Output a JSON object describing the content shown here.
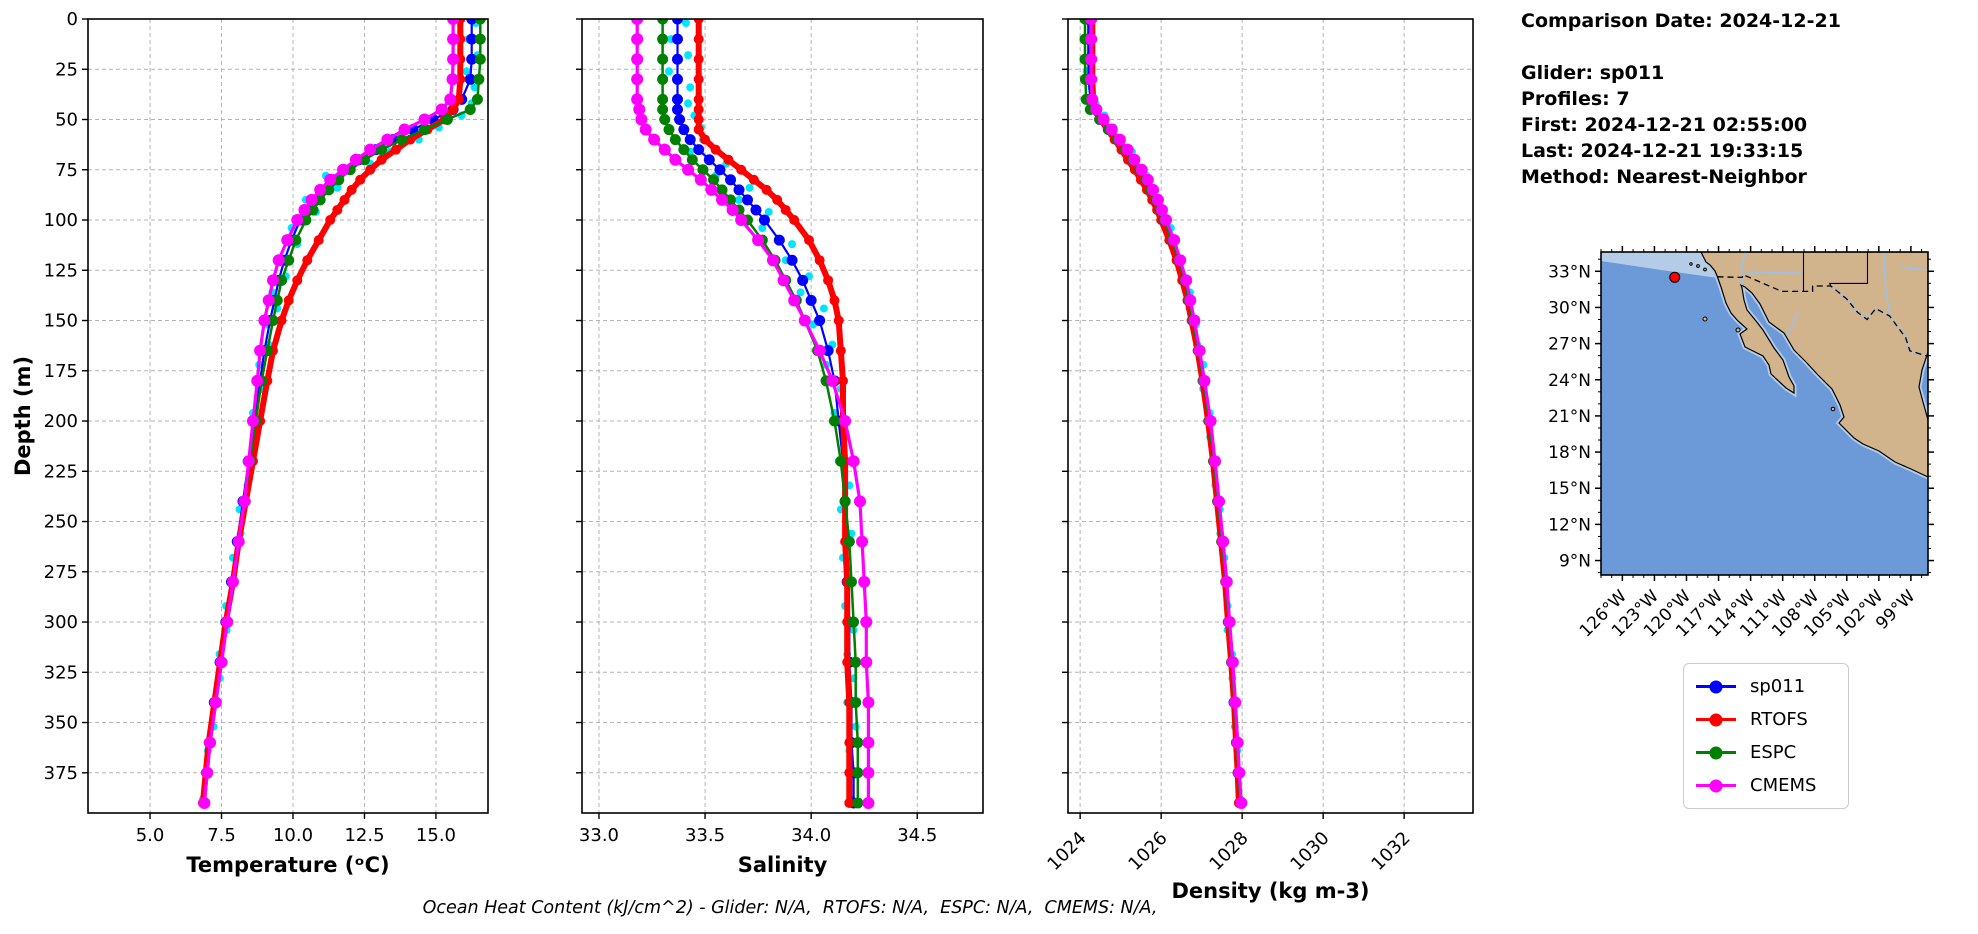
{
  "info_panel": {
    "comparison_date": "Comparison Date: 2024-12-21",
    "glider": "Glider: sp011",
    "profiles": "Profiles: 7",
    "first": "First: 2024-12-21 02:55:00",
    "last": "Last: 2024-12-21 19:33:15",
    "method": "Method: Nearest-Neighbor"
  },
  "caption": "Ocean Heat Content (kJ/cm^2) - Glider: N/A,  RTOFS: N/A,  ESPC: N/A,  CMEMS: N/A,",
  "legend": {
    "items": [
      {
        "label": "sp011",
        "color": "#0000ff"
      },
      {
        "label": "RTOFS",
        "color": "#ff0000"
      },
      {
        "label": "ESPC",
        "color": "#008000"
      },
      {
        "label": "CMEMS",
        "color": "#ff00ff"
      }
    ]
  },
  "chart_data": {
    "type": "line",
    "description": "Vertical ocean profiles from glider sp011 compared with RTOFS, ESPC and CMEMS models",
    "grid": true,
    "y_axis": {
      "label": "Depth (m)",
      "ticks": [
        0,
        25,
        50,
        75,
        100,
        125,
        150,
        175,
        200,
        225,
        250,
        275,
        300,
        325,
        350,
        375
      ],
      "range": [
        0,
        395
      ],
      "inverted": true
    },
    "panels": [
      {
        "id": "temperature",
        "xlabel": "Temperature (ᵒC)",
        "xlim": [
          2.83,
          16.82
        ],
        "xticks": [
          5.0,
          7.5,
          10.0,
          12.5,
          15.0
        ],
        "xtick_labels": [
          "5.0",
          "7.5",
          "10.0",
          "12.5",
          "15.0"
        ],
        "field": "temp",
        "rotate_xticklabels": false
      },
      {
        "id": "salinity",
        "xlabel": "Salinity",
        "xlim": [
          32.92,
          34.81
        ],
        "xticks": [
          33.0,
          33.5,
          34.0,
          34.5
        ],
        "xtick_labels": [
          "33.0",
          "33.5",
          "34.0",
          "34.5"
        ],
        "field": "sal",
        "rotate_xticklabels": false
      },
      {
        "id": "density",
        "xlabel": "Density (kg m-3)",
        "xlim": [
          1023.7,
          1033.7
        ],
        "xticks": [
          1024,
          1026,
          1028,
          1030,
          1032
        ],
        "xtick_labels": [
          "1024",
          "1026",
          "1028",
          "1030",
          "1032"
        ],
        "field": "dens",
        "rotate_xticklabels": true
      }
    ],
    "depths": [
      0,
      10,
      20,
      30,
      40,
      45,
      50,
      55,
      60,
      65,
      70,
      75,
      80,
      85,
      90,
      95,
      100,
      110,
      120,
      130,
      140,
      150,
      165,
      180,
      200,
      220,
      240,
      260,
      280,
      300,
      320,
      340,
      360,
      375,
      390
    ],
    "series": [
      {
        "name": "sp011",
        "color": "#0000ff",
        "line_width": 2.2,
        "marker_radius": 5.5,
        "temp": [
          16.25,
          16.25,
          16.25,
          16.2,
          15.9,
          15.6,
          14.9,
          14.2,
          13.5,
          12.9,
          12.3,
          11.8,
          11.4,
          11.05,
          10.75,
          10.5,
          10.25,
          9.95,
          9.7,
          9.5,
          9.35,
          9.2,
          9.0,
          8.85,
          8.65,
          8.45,
          8.25,
          8.05,
          7.85,
          7.65,
          7.45,
          7.25,
          7.1,
          7.0,
          6.9
        ],
        "sal": [
          33.37,
          33.37,
          33.37,
          33.37,
          33.37,
          33.37,
          33.38,
          33.4,
          33.43,
          33.47,
          33.52,
          33.57,
          33.62,
          33.66,
          33.7,
          33.74,
          33.78,
          33.85,
          33.91,
          33.96,
          34.0,
          34.04,
          34.08,
          34.11,
          34.13,
          34.15,
          34.16,
          34.17,
          34.17,
          34.18,
          34.18,
          34.19,
          34.19,
          34.2,
          34.2
        ],
        "dens": [
          1024.2,
          1024.2,
          1024.2,
          1024.21,
          1024.25,
          1024.38,
          1024.55,
          1024.75,
          1024.95,
          1025.15,
          1025.32,
          1025.5,
          1025.65,
          1025.78,
          1025.9,
          1026.0,
          1026.1,
          1026.3,
          1026.45,
          1026.6,
          1026.7,
          1026.8,
          1026.93,
          1027.05,
          1027.2,
          1027.3,
          1027.4,
          1027.5,
          1027.6,
          1027.66,
          1027.74,
          1027.8,
          1027.86,
          1027.9,
          1027.95
        ]
      },
      {
        "name": "RTOFS",
        "color": "#ff0000",
        "line_width": 6,
        "marker_radius": 5,
        "temp": [
          15.85,
          15.85,
          15.85,
          15.85,
          15.8,
          15.6,
          15.3,
          14.7,
          14.1,
          13.6,
          13.1,
          12.7,
          12.35,
          12.05,
          11.8,
          11.55,
          11.3,
          10.9,
          10.5,
          10.15,
          9.85,
          9.6,
          9.3,
          9.1,
          8.85,
          8.6,
          8.35,
          8.1,
          7.9,
          7.65,
          7.45,
          7.25,
          7.05,
          6.95,
          6.85
        ],
        "sal": [
          33.47,
          33.47,
          33.47,
          33.47,
          33.47,
          33.47,
          33.47,
          33.47,
          33.5,
          33.55,
          33.61,
          33.67,
          33.73,
          33.79,
          33.84,
          33.88,
          33.92,
          33.99,
          34.04,
          34.08,
          34.11,
          34.13,
          34.14,
          34.15,
          34.15,
          34.16,
          34.16,
          34.16,
          34.17,
          34.17,
          34.17,
          34.18,
          34.18,
          34.18,
          34.18
        ],
        "dens": [
          1024.3,
          1024.3,
          1024.3,
          1024.3,
          1024.32,
          1024.38,
          1024.5,
          1024.68,
          1024.85,
          1025.02,
          1025.18,
          1025.35,
          1025.5,
          1025.65,
          1025.78,
          1025.9,
          1026.0,
          1026.2,
          1026.38,
          1026.52,
          1026.65,
          1026.75,
          1026.9,
          1027.02,
          1027.16,
          1027.28,
          1027.38,
          1027.48,
          1027.58,
          1027.65,
          1027.73,
          1027.8,
          1027.85,
          1027.89,
          1027.92
        ]
      },
      {
        "name": "ESPC",
        "color": "#008000",
        "line_width": 2.5,
        "marker_radius": 5.5,
        "temp": [
          16.55,
          16.55,
          16.55,
          16.5,
          16.45,
          16.2,
          15.4,
          14.6,
          13.8,
          13.1,
          12.5,
          12.0,
          11.6,
          11.25,
          10.95,
          10.7,
          10.45,
          10.1,
          9.85,
          9.6,
          9.45,
          9.3,
          9.1,
          8.9,
          8.7,
          8.5,
          8.3,
          8.1,
          7.9,
          7.7,
          7.5,
          7.3,
          7.1,
          7.0,
          6.9
        ],
        "sal": [
          33.3,
          33.3,
          33.3,
          33.3,
          33.3,
          33.3,
          33.31,
          33.33,
          33.36,
          33.4,
          33.44,
          33.49,
          33.54,
          33.58,
          33.62,
          33.66,
          33.7,
          33.77,
          33.83,
          33.88,
          33.93,
          33.97,
          34.03,
          34.07,
          34.11,
          34.14,
          34.16,
          34.18,
          34.19,
          34.2,
          34.21,
          34.21,
          34.22,
          34.22,
          34.22
        ],
        "dens": [
          1024.12,
          1024.12,
          1024.12,
          1024.13,
          1024.15,
          1024.25,
          1024.48,
          1024.7,
          1024.92,
          1025.12,
          1025.3,
          1025.47,
          1025.62,
          1025.75,
          1025.87,
          1025.97,
          1026.07,
          1026.27,
          1026.43,
          1026.58,
          1026.68,
          1026.78,
          1026.92,
          1027.04,
          1027.19,
          1027.3,
          1027.4,
          1027.5,
          1027.6,
          1027.67,
          1027.75,
          1027.81,
          1027.87,
          1027.91,
          1027.96
        ]
      },
      {
        "name": "CMEMS",
        "color": "#ff00ff",
        "line_width": 3.2,
        "marker_radius": 6,
        "temp": [
          15.6,
          15.6,
          15.6,
          15.58,
          15.5,
          15.2,
          14.6,
          13.9,
          13.3,
          12.7,
          12.2,
          11.75,
          11.3,
          10.95,
          10.65,
          10.4,
          10.15,
          9.8,
          9.5,
          9.3,
          9.15,
          9.0,
          8.85,
          8.75,
          8.6,
          8.45,
          8.3,
          8.1,
          7.9,
          7.7,
          7.5,
          7.3,
          7.1,
          7.0,
          6.9
        ],
        "sal": [
          33.18,
          33.18,
          33.18,
          33.18,
          33.18,
          33.19,
          33.2,
          33.22,
          33.26,
          33.31,
          33.36,
          33.42,
          33.48,
          33.53,
          33.58,
          33.63,
          33.67,
          33.75,
          33.82,
          33.87,
          33.92,
          33.97,
          34.04,
          34.1,
          34.16,
          34.2,
          34.23,
          34.24,
          34.25,
          34.26,
          34.26,
          34.27,
          34.27,
          34.27,
          34.27
        ],
        "dens": [
          1024.27,
          1024.27,
          1024.27,
          1024.27,
          1024.3,
          1024.4,
          1024.58,
          1024.78,
          1024.98,
          1025.17,
          1025.34,
          1025.52,
          1025.67,
          1025.8,
          1025.92,
          1026.02,
          1026.12,
          1026.32,
          1026.47,
          1026.62,
          1026.72,
          1026.82,
          1026.95,
          1027.07,
          1027.22,
          1027.33,
          1027.43,
          1027.53,
          1027.62,
          1027.69,
          1027.77,
          1027.83,
          1027.89,
          1027.93,
          1027.98
        ]
      }
    ],
    "raw_scatter": {
      "name": "sp011 raw observations",
      "color": "#00e5ff",
      "marker_radius": 4,
      "depths": [
        2,
        10,
        18,
        26,
        34,
        42,
        48,
        54,
        60,
        66,
        72,
        78,
        84,
        90,
        96,
        104,
        112,
        120,
        128,
        136,
        144,
        152,
        162,
        172,
        184,
        196,
        208,
        220,
        232,
        244,
        256,
        268,
        280,
        292,
        304,
        316,
        328,
        340,
        352,
        364,
        376,
        388
      ],
      "temp": [
        16.4,
        16.13,
        16.45,
        16.07,
        16.35,
        16.25,
        15.9,
        15.1,
        14.4,
        13.4,
        12.7,
        11.15,
        11.55,
        10.45,
        10.8,
        9.95,
        10.15,
        9.55,
        9.75,
        9.28,
        9.45,
        9.08,
        9.15,
        8.82,
        8.9,
        8.6,
        8.67,
        8.37,
        8.41,
        8.13,
        8.17,
        7.9,
        7.93,
        7.66,
        7.68,
        7.43,
        7.44,
        7.19,
        7.22,
        7.02,
        7.04,
        6.86
      ],
      "sal": [
        33.41,
        33.34,
        33.42,
        33.33,
        33.43,
        33.42,
        33.45,
        33.48,
        33.49,
        33.43,
        33.6,
        33.55,
        33.71,
        33.66,
        33.8,
        33.77,
        33.91,
        33.88,
        33.99,
        33.95,
        34.06,
        34.01,
        34.1,
        34.07,
        34.14,
        34.11,
        34.16,
        34.13,
        34.18,
        34.14,
        34.19,
        34.15,
        34.19,
        34.16,
        34.2,
        34.17,
        34.2,
        34.17,
        34.21,
        34.18,
        34.21,
        34.19
      ],
      "dens": [
        1024.25,
        1024.16,
        1024.25,
        1024.16,
        1024.28,
        1024.38,
        1024.6,
        1024.82,
        1024.85,
        1025.28,
        1025.28,
        1025.64,
        1025.67,
        1025.97,
        1025.97,
        1026.24,
        1026.28,
        1026.5,
        1026.53,
        1026.71,
        1026.7,
        1026.86,
        1026.89,
        1027.04,
        1027.04,
        1027.2,
        1027.21,
        1027.33,
        1027.34,
        1027.45,
        1027.46,
        1027.56,
        1027.58,
        1027.64,
        1027.64,
        1027.75,
        1027.76,
        1027.82,
        1027.82,
        1027.88,
        1027.89,
        1027.95
      ]
    }
  },
  "map": {
    "extent": {
      "lon_min": -128,
      "lon_max": -97.4,
      "lat_min": 7.8,
      "lat_max": 34.6
    },
    "lon_ticks": {
      "values": [
        -126,
        -123,
        -120,
        -117,
        -114,
        -111,
        -108,
        -105,
        -102,
        -99
      ],
      "labels": [
        "126°W",
        "123°W",
        "120°W",
        "117°W",
        "114°W",
        "111°W",
        "108°W",
        "105°W",
        "102°W",
        "99°W"
      ]
    },
    "lat_ticks": {
      "values": [
        33,
        30,
        27,
        24,
        21,
        18,
        15,
        12,
        9
      ],
      "labels": [
        "33°N",
        "30°N",
        "27°N",
        "24°N",
        "21°N",
        "18°N",
        "15°N",
        "12°N",
        "9°N"
      ]
    },
    "marker": {
      "lat": 32.5,
      "lon": -121.1,
      "color": "#ff0000"
    },
    "colors": {
      "land": "#d2b48c",
      "ocean": "#6c99d8",
      "shelf": "#b4cce8",
      "river": "#9cc0e8",
      "coast": "#000000"
    }
  }
}
